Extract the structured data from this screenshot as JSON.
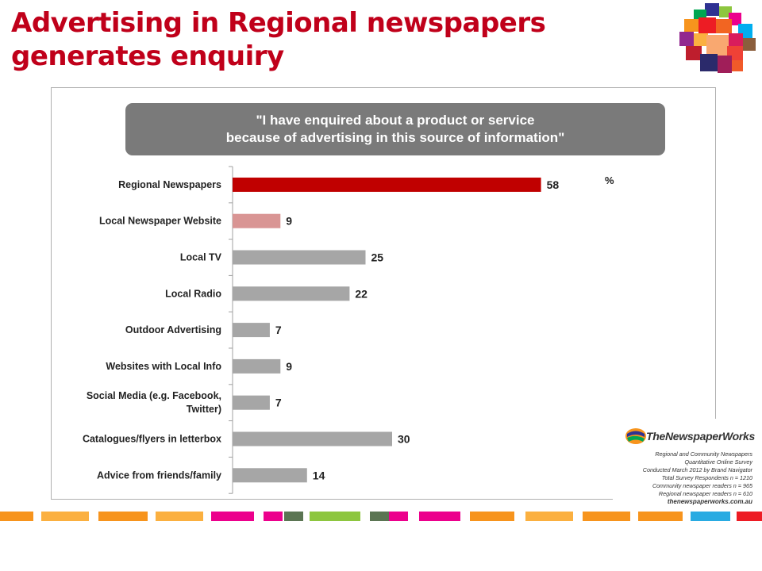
{
  "title": "Advertising in Regional newspapers generates enquiry",
  "chart_data": {
    "type": "bar",
    "orientation": "horizontal",
    "title": "\"I have enquired about a product or service\nbecause of advertising in this source of information\"",
    "unit": "%",
    "categories": [
      "Regional Newspapers",
      "Local Newspaper Website",
      "Local TV",
      "Local Radio",
      "Outdoor Advertising",
      "Websites with Local Info",
      "Social Media (e.g. Facebook, Twitter)",
      "Catalogues/flyers in letterbox",
      "Advice from friends/family"
    ],
    "values": [
      58,
      9,
      25,
      22,
      7,
      9,
      7,
      30,
      14
    ],
    "bar_colors": [
      "#c00000",
      "#d99594",
      "#a6a6a6",
      "#a6a6a6",
      "#a6a6a6",
      "#a6a6a6",
      "#a6a6a6",
      "#a6a6a6",
      "#a6a6a6"
    ],
    "xlim": [
      0,
      100
    ],
    "grid": false,
    "data_labels": true
  },
  "source": {
    "brand": "TheNewspaperWorks",
    "lines": [
      "Regional and Community Newspapers",
      "Quantitative Online Survey",
      "Conducted March 2012 by Brand Navigator",
      "Total Survey Respondents n = 1210",
      "Community newspaper readers n = 965",
      "Regional newspaper readers n = 610"
    ],
    "url": "thenewspaperworks.com.au"
  },
  "colors": {
    "title": "#c0001a",
    "accent": "#c00000",
    "secondary": "#d99594",
    "neutral": "#a6a6a6",
    "quote_box": "#7a7a7a"
  }
}
